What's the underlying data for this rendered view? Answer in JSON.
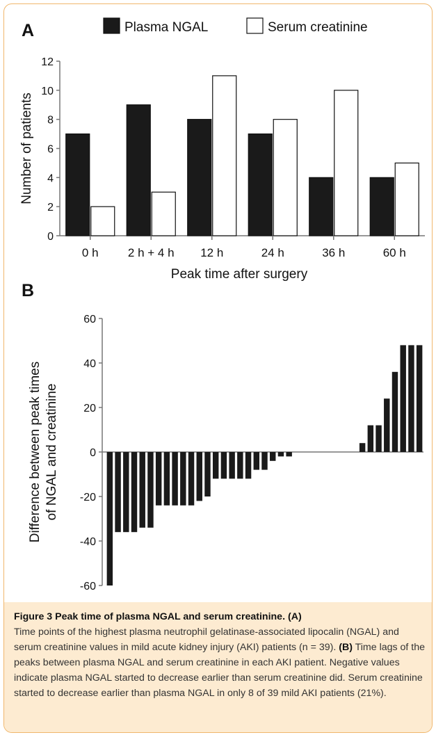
{
  "panels": {
    "a_label": "A",
    "b_label": "B"
  },
  "colors": {
    "frame": "#f0b66b",
    "caption_bg": "#fdebd1",
    "bar_dark": "#1a1a1a"
  },
  "chart_data": [
    {
      "type": "bar",
      "panel": "A",
      "categories": [
        "0 h",
        "2 h + 4 h",
        "12 h",
        "24 h",
        "36 h",
        "60 h"
      ],
      "series": [
        {
          "name": "Plasma NGAL",
          "color": "#1a1a1a",
          "values": [
            7,
            9,
            8,
            7,
            4,
            4
          ]
        },
        {
          "name": "Serum creatinine",
          "color": "#ffffff",
          "values": [
            2,
            3,
            11,
            8,
            10,
            5
          ]
        }
      ],
      "xlabel": "Peak time after surgery",
      "ylabel": "Number of patients",
      "ylim": [
        0,
        12
      ],
      "yticks": [
        0,
        2,
        4,
        6,
        8,
        10,
        12
      ],
      "legend": "top",
      "grid": false
    },
    {
      "type": "bar",
      "panel": "B",
      "values": [
        -60,
        -36,
        -36,
        -36,
        -34,
        -34,
        -24,
        -24,
        -24,
        -24,
        -24,
        -22,
        -20,
        -12,
        -12,
        -12,
        -12,
        -12,
        -8,
        -8,
        -4,
        -2,
        -2,
        0,
        0,
        0,
        0,
        0,
        0,
        0,
        0,
        4,
        12,
        12,
        24,
        36,
        48,
        48,
        48
      ],
      "ylabel": "Difference between peak times of NGAL and creatinine",
      "ylabel_lines": [
        "Difference between peak times",
        "of NGAL and creatinine"
      ],
      "ylim": [
        -60,
        60
      ],
      "yticks": [
        -60,
        -40,
        -20,
        0,
        20,
        40,
        60
      ],
      "grid": false
    }
  ],
  "caption": {
    "title": "Figure 3 Peak time of plasma NGAL and serum creatinine.",
    "a_marker": "(A)",
    "a_text": "Time points of the highest plasma neutrophil gelatinase-associated lipocalin (NGAL) and serum creatinine values in mild acute kidney injury (AKI) patients (n = 39).",
    "b_marker": "(B)",
    "b_text": "Time lags of the peaks between plasma NGAL and serum creatinine in each AKI patient. Negative values indicate plasma NGAL started to decrease earlier than serum creatinine did. Serum creatinine started to decrease earlier than plasma NGAL in only 8 of 39 mild AKI patients (21%)."
  }
}
